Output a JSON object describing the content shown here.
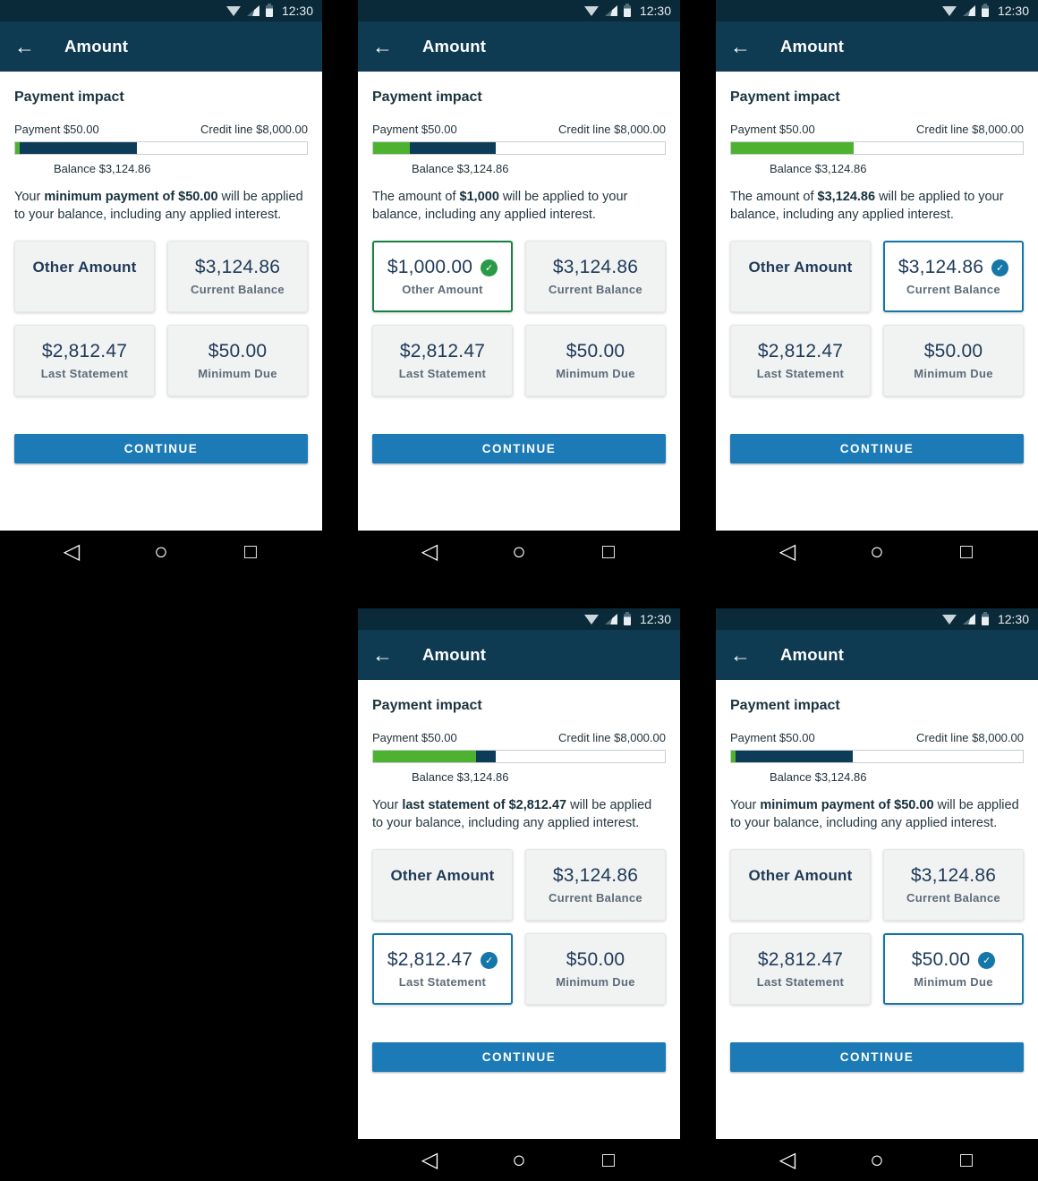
{
  "app": {
    "time": "12:30",
    "title": "Amount",
    "heading": "Payment impact",
    "payment_label": "Payment $50.00",
    "credit_label": "Credit line $8,000.00",
    "balance_label": "Balance $3,124.86",
    "continue_label": "CONTINUE"
  },
  "icons": {
    "back": "←",
    "check": "✓",
    "nav_back": "◁",
    "nav_home": "○",
    "nav_recents": "□"
  },
  "colors": {
    "statusbar": "#0a2a39",
    "appbar": "#0e3a52",
    "bar_green": "#4eb231",
    "bar_navy": "#0d3c59",
    "continue_blue": "#1c7ab6",
    "selected_green_border": "#17813f",
    "selected_green_check": "#2a9a49",
    "selected_blue": "#1576a8"
  },
  "screens": [
    {
      "id": "minimum-payment-preview",
      "message": {
        "prefix": "Your ",
        "bold": "minimum payment of $50.00",
        "suffix": " will be applied to your balance, including any applied interest."
      },
      "bar": {
        "green_pct": 1.4,
        "navy_pct": 40.2
      },
      "cards": [
        {
          "big": "Other Amount",
          "small": "",
          "kind": "label",
          "selected": false,
          "check": ""
        },
        {
          "big": "$3,124.86",
          "small": "Current Balance",
          "kind": "amount",
          "selected": false,
          "check": ""
        },
        {
          "big": "$2,812.47",
          "small": "Last Statement",
          "kind": "amount",
          "selected": false,
          "check": ""
        },
        {
          "big": "$50.00",
          "small": "Minimum Due",
          "kind": "amount",
          "selected": false,
          "check": ""
        }
      ]
    },
    {
      "id": "other-amount-selected",
      "message": {
        "prefix": "The amount of ",
        "bold": "$1,000",
        "suffix": " will be applied to your balance, including any applied interest."
      },
      "bar": {
        "green_pct": 12.5,
        "navy_pct": 29.5
      },
      "cards": [
        {
          "big": "$1,000.00",
          "small": "Other Amount",
          "kind": "amount",
          "selected": true,
          "check": "green"
        },
        {
          "big": "$3,124.86",
          "small": "Current Balance",
          "kind": "amount",
          "selected": false,
          "check": ""
        },
        {
          "big": "$2,812.47",
          "small": "Last Statement",
          "kind": "amount",
          "selected": false,
          "check": ""
        },
        {
          "big": "$50.00",
          "small": "Minimum Due",
          "kind": "amount",
          "selected": false,
          "check": ""
        }
      ]
    },
    {
      "id": "current-balance-selected",
      "message": {
        "prefix": "The amount of ",
        "bold": "$3,124.86",
        "suffix": " will be applied to your balance, including any applied interest."
      },
      "bar": {
        "green_pct": 42,
        "navy_pct": 0
      },
      "cards": [
        {
          "big": "Other Amount",
          "small": "",
          "kind": "label",
          "selected": false,
          "check": ""
        },
        {
          "big": "$3,124.86",
          "small": "Current Balance",
          "kind": "amount",
          "selected": true,
          "check": "blue"
        },
        {
          "big": "$2,812.47",
          "small": "Last Statement",
          "kind": "amount",
          "selected": false,
          "check": ""
        },
        {
          "big": "$50.00",
          "small": "Minimum Due",
          "kind": "amount",
          "selected": false,
          "check": ""
        }
      ]
    },
    {
      "id": "last-statement-selected",
      "message": {
        "prefix": "Your ",
        "bold": "last statement of $2,812.47",
        "suffix": " will be applied to your balance, including any applied interest."
      },
      "bar": {
        "green_pct": 35.4,
        "navy_pct": 6.6
      },
      "cards": [
        {
          "big": "Other Amount",
          "small": "",
          "kind": "label",
          "selected": false,
          "check": ""
        },
        {
          "big": "$3,124.86",
          "small": "Current Balance",
          "kind": "amount",
          "selected": false,
          "check": ""
        },
        {
          "big": "$2,812.47",
          "small": "Last Statement",
          "kind": "amount",
          "selected": true,
          "check": "blue"
        },
        {
          "big": "$50.00",
          "small": "Minimum Due",
          "kind": "amount",
          "selected": false,
          "check": ""
        }
      ]
    },
    {
      "id": "minimum-due-selected",
      "message": {
        "prefix": "Your ",
        "bold": "minimum payment of $50.00",
        "suffix": " will be applied to your balance, including any applied interest."
      },
      "bar": {
        "green_pct": 1.4,
        "navy_pct": 40.2
      },
      "cards": [
        {
          "big": "Other Amount",
          "small": "",
          "kind": "label",
          "selected": false,
          "check": ""
        },
        {
          "big": "$3,124.86",
          "small": "Current Balance",
          "kind": "amount",
          "selected": false,
          "check": ""
        },
        {
          "big": "$2,812.47",
          "small": "Last Statement",
          "kind": "amount",
          "selected": false,
          "check": ""
        },
        {
          "big": "$50.00",
          "small": "Minimum Due",
          "kind": "amount",
          "selected": true,
          "check": "blue"
        }
      ]
    }
  ]
}
